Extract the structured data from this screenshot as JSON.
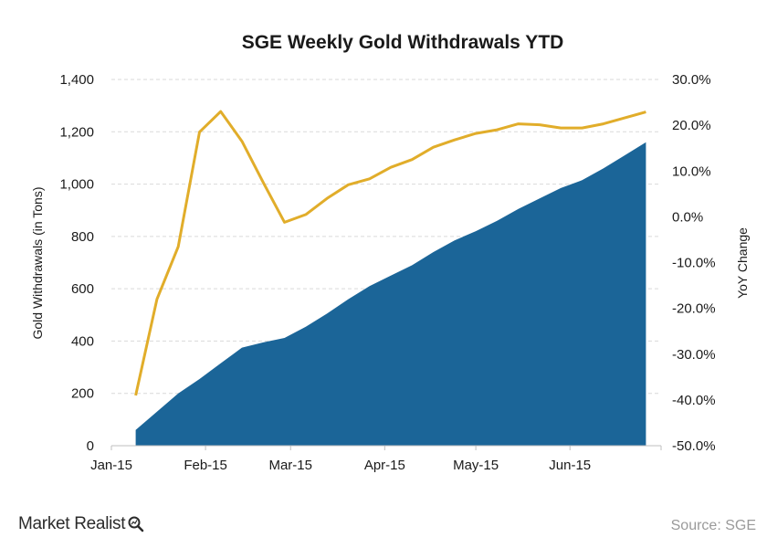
{
  "brand": {
    "name": "Market Realist",
    "icon": "magnifier-icon"
  },
  "source": "Source: SGE",
  "colors": {
    "area": "#1b6598",
    "line": "#e1ad2a",
    "grid": "#d9d9d9"
  },
  "chart_data": {
    "type": "area+line",
    "title": "SGE Weekly Gold Withdrawals YTD",
    "x_axis": {
      "ticks": [
        "Jan-15",
        "Feb-15",
        "Mar-15",
        "Apr-15",
        "May-15",
        "Jun-15"
      ]
    },
    "y_left": {
      "label": "Gold Withdrawals (in Tons)",
      "range": [
        0,
        1400
      ],
      "ticks": [
        "0",
        "200",
        "400",
        "600",
        "800",
        "1,000",
        "1,200",
        "1,400"
      ]
    },
    "y_right": {
      "label": "YoY Change",
      "range": [
        -50,
        30
      ],
      "ticks": [
        "-50.0%",
        "-40.0%",
        "-30.0%",
        "-20.0%",
        "-10.0%",
        "0.0%",
        "10.0%",
        "20.0%",
        "30.0%"
      ]
    },
    "grid": true,
    "legend": "none",
    "x": [
      "2015-01-09",
      "2015-01-16",
      "2015-01-23",
      "2015-01-30",
      "2015-02-06",
      "2015-02-13",
      "2015-02-20",
      "2015-02-27",
      "2015-03-06",
      "2015-03-13",
      "2015-03-20",
      "2015-03-27",
      "2015-04-03",
      "2015-04-10",
      "2015-04-17",
      "2015-04-24",
      "2015-05-01",
      "2015-05-08",
      "2015-05-15",
      "2015-05-22",
      "2015-05-29",
      "2015-06-05",
      "2015-06-12",
      "2015-06-19",
      "2015-06-26"
    ],
    "series": [
      {
        "type": "area",
        "values": [
          60,
          130,
          200,
          255,
          315,
          375,
          395,
          412,
          455,
          505,
          560,
          610,
          650,
          690,
          740,
          785,
          820,
          860,
          905,
          945,
          985,
          1015,
          1060,
          1110,
          1160
        ]
      },
      {
        "type": "line",
        "axis": "right",
        "values": [
          -39,
          -18,
          -6.5,
          18.5,
          23,
          16.5,
          7.5,
          -1.2,
          0.5,
          4,
          7,
          8.3,
          10.8,
          12.5,
          15.2,
          16.8,
          18.2,
          19,
          20.3,
          20.1,
          19.4,
          19.4,
          20.3,
          21.6,
          22.9
        ]
      }
    ]
  }
}
